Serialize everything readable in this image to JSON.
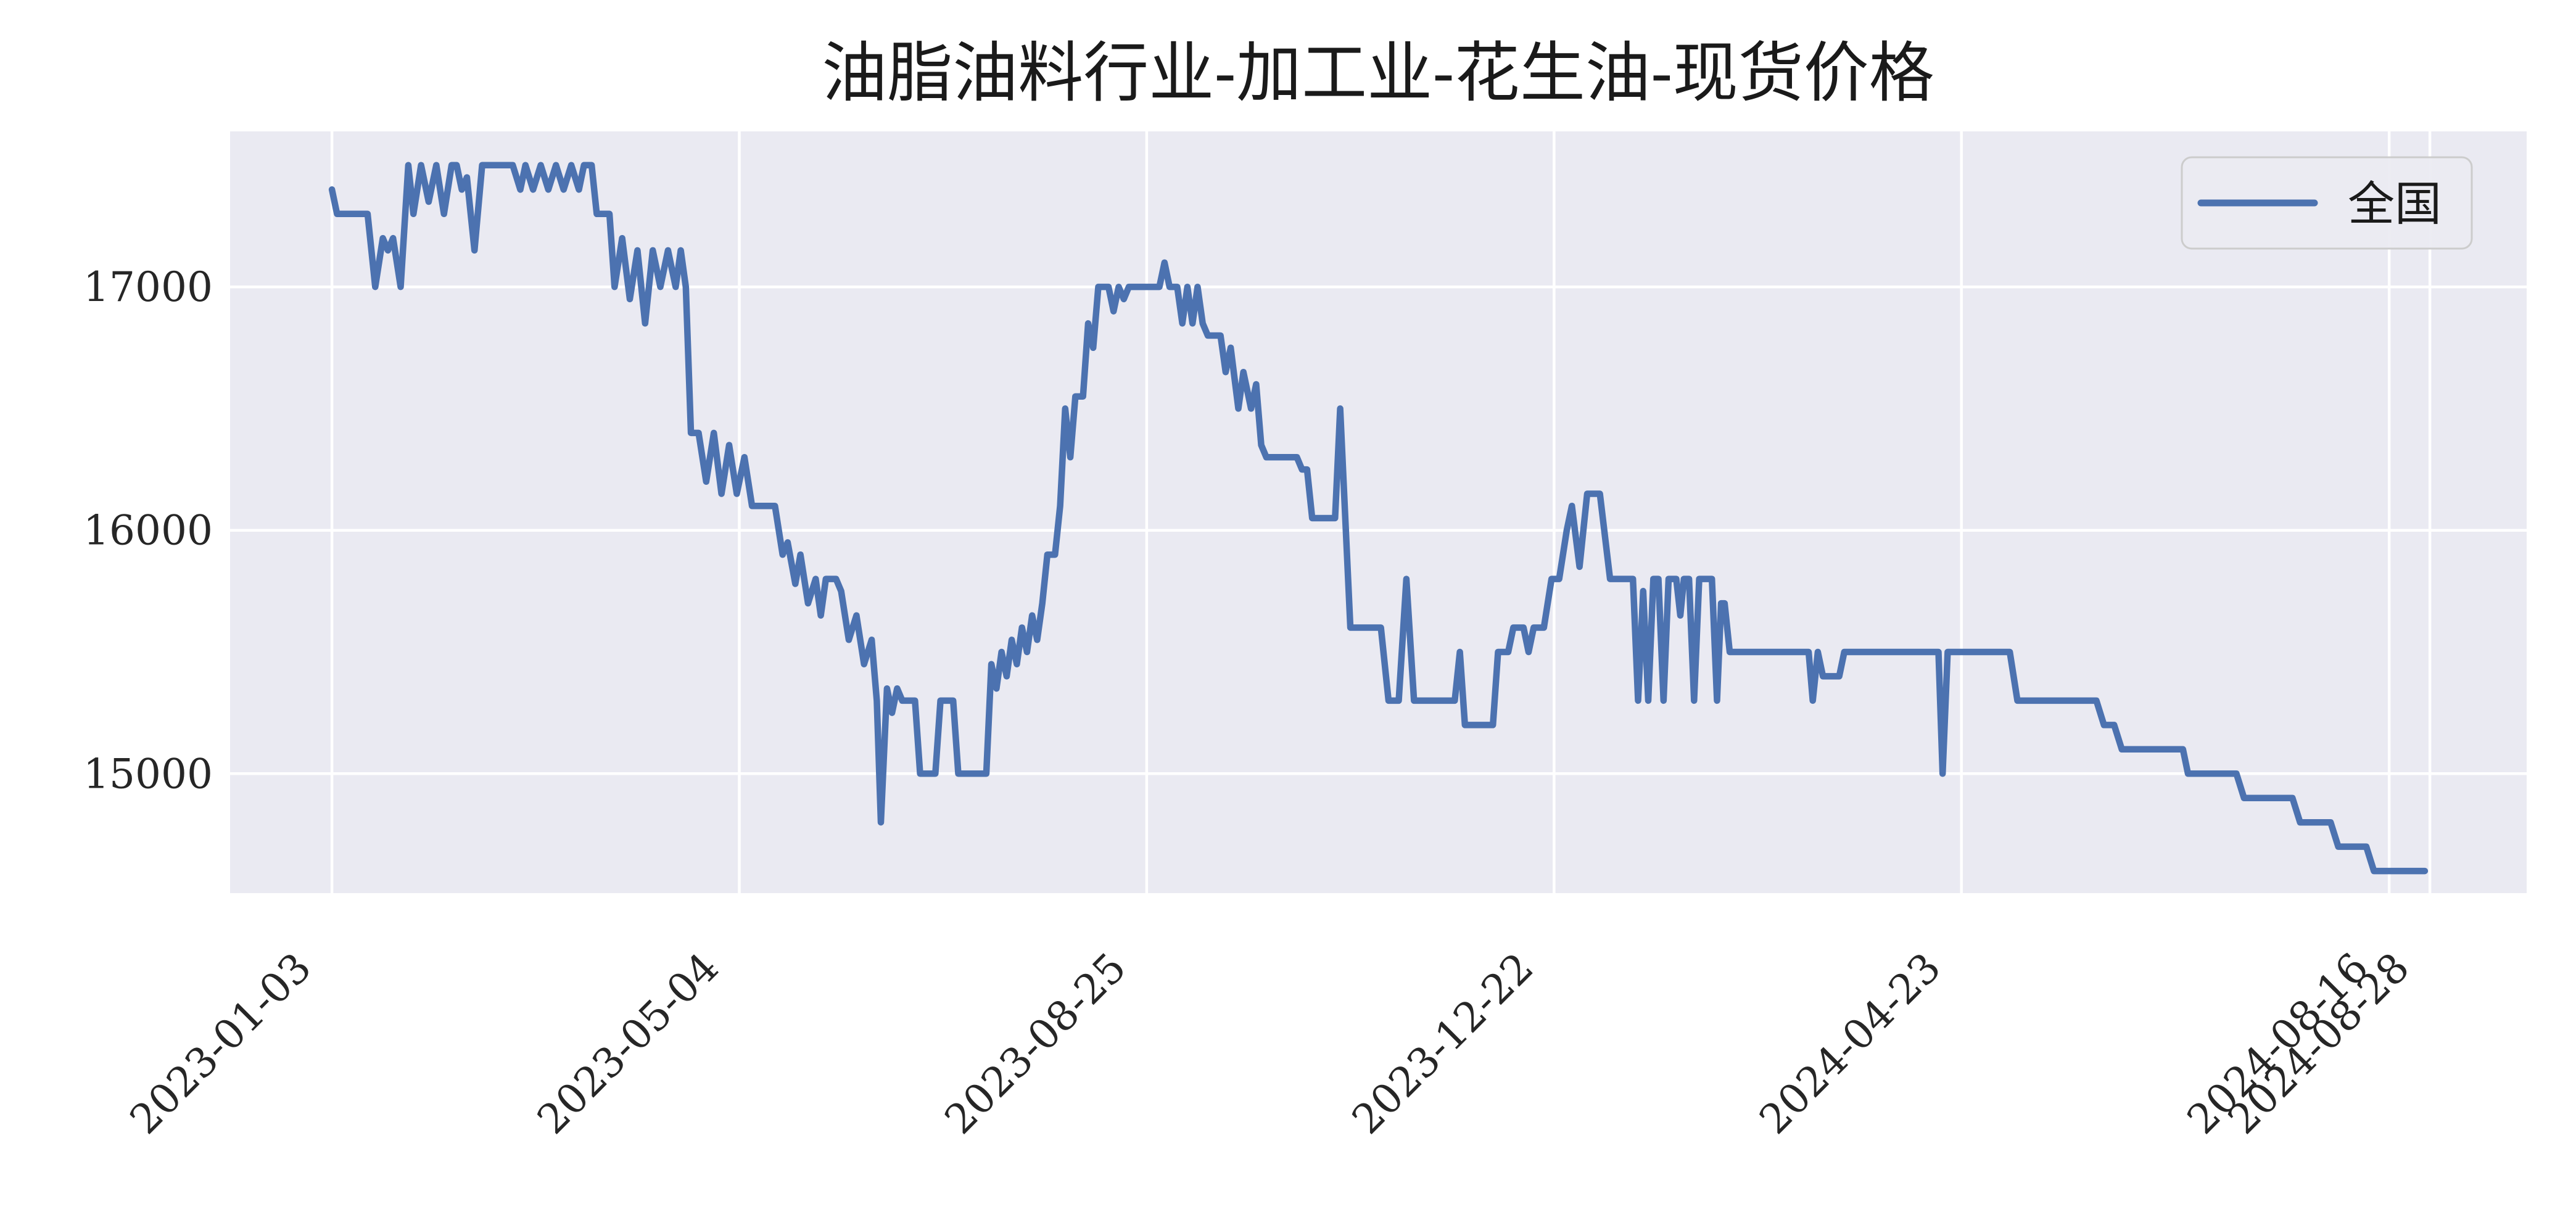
{
  "page": {
    "background": "#ffffff"
  },
  "legend": {
    "label": "全国"
  },
  "chart_data": {
    "type": "line",
    "title": "油脂油料行业-加工业-花生油-现货价格",
    "xlabel": "",
    "ylabel": "",
    "grid": true,
    "legend_position": "upper right",
    "style": {
      "axes_background": "#eaeaf2",
      "grid_color": "#ffffff",
      "line_color": "#4c72b0",
      "tick_color": "#262626",
      "legend_border": "#cccccc"
    },
    "x_axis": {
      "range": [
        -20,
        431
      ],
      "ticks": [
        {
          "pos": 0,
          "label": "2023-01-03"
        },
        {
          "pos": 80,
          "label": "2023-05-04"
        },
        {
          "pos": 160,
          "label": "2023-08-25"
        },
        {
          "pos": 240,
          "label": "2023-12-22"
        },
        {
          "pos": 320,
          "label": "2024-04-23"
        },
        {
          "pos": 404,
          "label": "2024-08-16"
        },
        {
          "pos": 412,
          "label": "2024-08-28"
        }
      ]
    },
    "y_axis": {
      "range": [
        14509,
        17639
      ],
      "ticks": [
        {
          "value": 17000,
          "label": "17000"
        },
        {
          "value": 16000,
          "label": "16000"
        },
        {
          "value": 15000,
          "label": "15000"
        }
      ]
    },
    "series": [
      {
        "name": "全国",
        "color": "#4c72b0",
        "points": [
          [
            0,
            17400
          ],
          [
            1,
            17300
          ],
          [
            7,
            17300
          ],
          [
            8.5,
            17000
          ],
          [
            10,
            17200
          ],
          [
            11,
            17150
          ],
          [
            12,
            17200
          ],
          [
            13.5,
            17000
          ],
          [
            15,
            17500
          ],
          [
            16,
            17300
          ],
          [
            17.5,
            17500
          ],
          [
            19,
            17350
          ],
          [
            20.5,
            17500
          ],
          [
            22,
            17300
          ],
          [
            23.5,
            17500
          ],
          [
            24.5,
            17500
          ],
          [
            25.5,
            17400
          ],
          [
            26.5,
            17450
          ],
          [
            28,
            17150
          ],
          [
            29.5,
            17500
          ],
          [
            35.5,
            17500
          ],
          [
            37,
            17400
          ],
          [
            38,
            17500
          ],
          [
            39.5,
            17400
          ],
          [
            41,
            17500
          ],
          [
            42.5,
            17400
          ],
          [
            44,
            17500
          ],
          [
            45.5,
            17400
          ],
          [
            47,
            17500
          ],
          [
            48.5,
            17400
          ],
          [
            49.5,
            17500
          ],
          [
            51,
            17500
          ],
          [
            52,
            17300
          ],
          [
            54.5,
            17300
          ],
          [
            55.5,
            17000
          ],
          [
            57,
            17200
          ],
          [
            58.5,
            16950
          ],
          [
            60,
            17150
          ],
          [
            61.5,
            16850
          ],
          [
            63,
            17150
          ],
          [
            64.5,
            17000
          ],
          [
            66,
            17150
          ],
          [
            67.5,
            17000
          ],
          [
            68.5,
            17150
          ],
          [
            69.5,
            17000
          ],
          [
            70.5,
            16400
          ],
          [
            72,
            16400
          ],
          [
            73.5,
            16200
          ],
          [
            75,
            16400
          ],
          [
            76.5,
            16150
          ],
          [
            78,
            16350
          ],
          [
            79.5,
            16150
          ],
          [
            81,
            16300
          ],
          [
            82.5,
            16100
          ],
          [
            87,
            16100
          ],
          [
            88.5,
            15900
          ],
          [
            89.5,
            15950
          ],
          [
            91,
            15780
          ],
          [
            92,
            15900
          ],
          [
            93.5,
            15700
          ],
          [
            95,
            15800
          ],
          [
            96,
            15650
          ],
          [
            97,
            15800
          ],
          [
            99,
            15800
          ],
          [
            100,
            15750
          ],
          [
            101.5,
            15550
          ],
          [
            103,
            15650
          ],
          [
            104.5,
            15450
          ],
          [
            106,
            15550
          ],
          [
            107,
            15300
          ],
          [
            107.8,
            14800
          ],
          [
            109,
            15350
          ],
          [
            110,
            15250
          ],
          [
            111,
            15350
          ],
          [
            112,
            15300
          ],
          [
            114.5,
            15300
          ],
          [
            115.5,
            15000
          ],
          [
            118.5,
            15000
          ],
          [
            119.5,
            15300
          ],
          [
            122,
            15300
          ],
          [
            123,
            15000
          ],
          [
            128.5,
            15000
          ],
          [
            129.5,
            15450
          ],
          [
            130.5,
            15350
          ],
          [
            131.5,
            15500
          ],
          [
            132.5,
            15400
          ],
          [
            133.5,
            15550
          ],
          [
            134.5,
            15450
          ],
          [
            135.5,
            15600
          ],
          [
            136.5,
            15500
          ],
          [
            137.5,
            15650
          ],
          [
            138.5,
            15550
          ],
          [
            139.5,
            15700
          ],
          [
            140.5,
            15900
          ],
          [
            142,
            15900
          ],
          [
            143,
            16100
          ],
          [
            144,
            16500
          ],
          [
            145,
            16300
          ],
          [
            146,
            16550
          ],
          [
            147.5,
            16550
          ],
          [
            148.5,
            16850
          ],
          [
            149.5,
            16750
          ],
          [
            150.5,
            17000
          ],
          [
            152.5,
            17000
          ],
          [
            153.5,
            16900
          ],
          [
            154.5,
            17000
          ],
          [
            155.5,
            16950
          ],
          [
            156.5,
            17000
          ],
          [
            162.5,
            17000
          ],
          [
            163.5,
            17100
          ],
          [
            164.5,
            17000
          ],
          [
            166,
            17000
          ],
          [
            167,
            16850
          ],
          [
            168,
            17000
          ],
          [
            169,
            16850
          ],
          [
            170,
            17000
          ],
          [
            171,
            16850
          ],
          [
            172,
            16800
          ],
          [
            174.5,
            16800
          ],
          [
            175.5,
            16650
          ],
          [
            176.5,
            16750
          ],
          [
            178,
            16500
          ],
          [
            179,
            16650
          ],
          [
            180.5,
            16500
          ],
          [
            181.5,
            16600
          ],
          [
            182.5,
            16350
          ],
          [
            183.5,
            16300
          ],
          [
            189.5,
            16300
          ],
          [
            190.5,
            16250
          ],
          [
            191.5,
            16250
          ],
          [
            192.5,
            16050
          ],
          [
            197,
            16050
          ],
          [
            198,
            16500
          ],
          [
            200,
            15600
          ],
          [
            206,
            15600
          ],
          [
            207.5,
            15300
          ],
          [
            209.5,
            15300
          ],
          [
            211,
            15800
          ],
          [
            212.5,
            15300
          ],
          [
            220.5,
            15300
          ],
          [
            221.5,
            15500
          ],
          [
            222.5,
            15200
          ],
          [
            228,
            15200
          ],
          [
            229,
            15500
          ],
          [
            231,
            15500
          ],
          [
            232,
            15600
          ],
          [
            234,
            15600
          ],
          [
            235,
            15500
          ],
          [
            236,
            15600
          ],
          [
            238,
            15600
          ],
          [
            239.5,
            15800
          ],
          [
            241,
            15800
          ],
          [
            242.5,
            16000
          ],
          [
            243.5,
            16100
          ],
          [
            245,
            15850
          ],
          [
            246.5,
            16150
          ],
          [
            249,
            16150
          ],
          [
            251,
            15800
          ],
          [
            255.5,
            15800
          ],
          [
            256.5,
            15300
          ],
          [
            257.5,
            15750
          ],
          [
            258.5,
            15300
          ],
          [
            259.5,
            15800
          ],
          [
            260.5,
            15800
          ],
          [
            261.5,
            15300
          ],
          [
            262.5,
            15800
          ],
          [
            264,
            15800
          ],
          [
            264.8,
            15650
          ],
          [
            265.5,
            15800
          ],
          [
            266.5,
            15800
          ],
          [
            267.5,
            15300
          ],
          [
            268.5,
            15800
          ],
          [
            271,
            15800
          ],
          [
            272,
            15300
          ],
          [
            272.8,
            15700
          ],
          [
            273.5,
            15700
          ],
          [
            274.5,
            15500
          ],
          [
            290,
            15500
          ],
          [
            290.8,
            15300
          ],
          [
            291.8,
            15500
          ],
          [
            292.8,
            15400
          ],
          [
            296,
            15400
          ],
          [
            297,
            15500
          ],
          [
            315.5,
            15500
          ],
          [
            316.3,
            15000
          ],
          [
            317.3,
            15500
          ],
          [
            329.5,
            15500
          ],
          [
            331,
            15300
          ],
          [
            346.5,
            15300
          ],
          [
            348,
            15200
          ],
          [
            350,
            15200
          ],
          [
            351.5,
            15100
          ],
          [
            363.5,
            15100
          ],
          [
            364.5,
            15000
          ],
          [
            374,
            15000
          ],
          [
            375.5,
            14900
          ],
          [
            385,
            14900
          ],
          [
            386.5,
            14800
          ],
          [
            392.5,
            14800
          ],
          [
            394,
            14700
          ],
          [
            399.5,
            14700
          ],
          [
            401,
            14600
          ],
          [
            411,
            14600
          ]
        ]
      }
    ]
  }
}
